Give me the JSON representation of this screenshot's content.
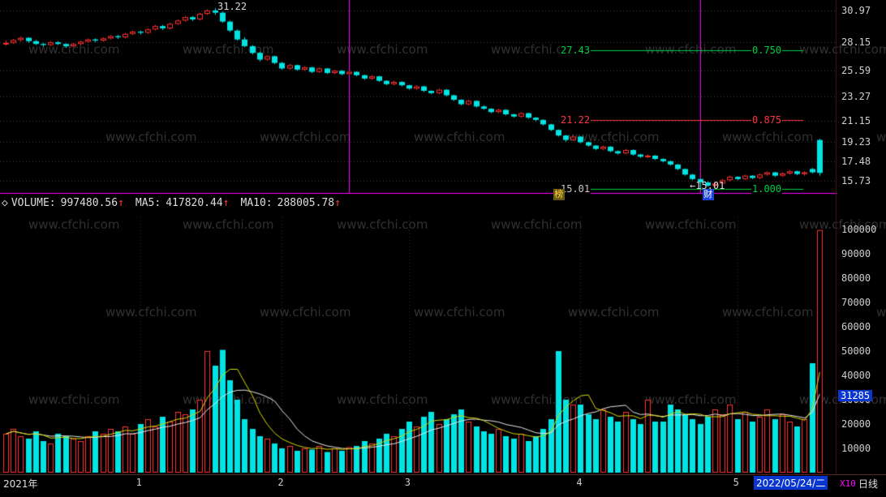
{
  "watermark": {
    "text": "www.cfchi.com"
  },
  "colors": {
    "up": "#ff3232",
    "down": "#00e4e4",
    "ma5": "#d8d800",
    "ma10": "#e8e8e8",
    "grid": "#3c3c3c",
    "month_grid": "#5a1a1a",
    "magenta": "#ff00ff",
    "green": "#00cc44",
    "red": "#ff3344",
    "axis_text": "#cfcfcf",
    "badge_bg": "#0a36d0",
    "x10": "#ff00ff"
  },
  "header": {
    "collapse_icon": "◇",
    "volume_label": "VOLUME:",
    "volume_value": "997480.56",
    "ma5_label": "MA5:",
    "ma5_value": "417820.44",
    "ma10_label": "MA10:",
    "ma10_value": "288005.78",
    "up_arrow": "↑"
  },
  "annotations": {
    "peak": {
      "text": "31.22",
      "idx": 28,
      "value": 31.22
    },
    "low": {
      "arrow": "←",
      "text": "15.01",
      "idx": 93,
      "value": 15.01
    },
    "vlines": [
      46,
      93
    ],
    "fib": [
      {
        "price_text": "27.43",
        "price": 27.43,
        "ratio": "0.750",
        "color": "#00cc44"
      },
      {
        "price_text": "21.22",
        "price": 21.22,
        "ratio": "0.875",
        "color": "#ff3344"
      },
      {
        "price_text": "15.01",
        "price": 15.01,
        "ratio": "1.000",
        "color": "#00cc44",
        "price_color": "#c8c8c8"
      }
    ],
    "tags": [
      {
        "text": "榜",
        "idx": 74,
        "bg": "#6b5b10",
        "fg": "#ffd24a"
      },
      {
        "text": "财",
        "idx": 94,
        "bg": "#1b46d8",
        "fg": "#ffffff"
      }
    ]
  },
  "chart_data": {
    "type": "candlestick+volume",
    "x_axis": {
      "year_label": "2021年",
      "months": [
        {
          "label": "1",
          "idx": 18
        },
        {
          "label": "2",
          "idx": 37
        },
        {
          "label": "3",
          "idx": 54
        },
        {
          "label": "4",
          "idx": 77
        },
        {
          "label": "5",
          "idx": 98
        }
      ],
      "selected_date": "2022/05/24/二",
      "period": "日线"
    },
    "price": {
      "ticks": [
        {
          "text": "30.97",
          "value": 30.97
        },
        {
          "text": "28.15",
          "value": 28.15
        },
        {
          "text": "25.59",
          "value": 25.59
        },
        {
          "text": "23.27",
          "value": 23.27
        },
        {
          "text": "21.15",
          "value": 21.15
        },
        {
          "text": "19.23",
          "value": 19.23
        },
        {
          "text": "17.48",
          "value": 17.48
        },
        {
          "text": "15.73",
          "value": 15.73
        }
      ],
      "candles": [
        [
          28.0,
          28.3,
          27.85,
          28.1
        ],
        [
          28.1,
          28.45,
          28.0,
          28.35
        ],
        [
          28.35,
          28.65,
          28.2,
          28.55
        ],
        [
          28.55,
          28.6,
          28.1,
          28.25
        ],
        [
          28.25,
          28.35,
          27.9,
          28.0
        ],
        [
          28.0,
          28.1,
          27.75,
          27.9
        ],
        [
          27.9,
          28.25,
          27.8,
          28.15
        ],
        [
          28.15,
          28.25,
          27.9,
          28.0
        ],
        [
          28.0,
          28.05,
          27.65,
          27.8
        ],
        [
          27.8,
          28.1,
          27.7,
          28.0
        ],
        [
          28.0,
          28.3,
          27.9,
          28.2
        ],
        [
          28.2,
          28.5,
          28.1,
          28.4
        ],
        [
          28.4,
          28.5,
          28.15,
          28.3
        ],
        [
          28.3,
          28.6,
          28.2,
          28.5
        ],
        [
          28.5,
          28.8,
          28.4,
          28.7
        ],
        [
          28.7,
          28.8,
          28.45,
          28.6
        ],
        [
          28.6,
          29.0,
          28.5,
          28.9
        ],
        [
          28.9,
          29.2,
          28.8,
          29.1
        ],
        [
          29.1,
          29.2,
          28.85,
          29.0
        ],
        [
          29.0,
          29.4,
          28.9,
          29.3
        ],
        [
          29.3,
          29.7,
          29.2,
          29.6
        ],
        [
          29.6,
          29.7,
          29.25,
          29.4
        ],
        [
          29.4,
          29.9,
          29.3,
          29.8
        ],
        [
          29.8,
          30.2,
          29.7,
          30.1
        ],
        [
          30.1,
          30.5,
          30.0,
          30.4
        ],
        [
          30.4,
          30.5,
          30.05,
          30.2
        ],
        [
          30.2,
          30.8,
          30.1,
          30.7
        ],
        [
          30.7,
          31.1,
          30.6,
          31.0
        ],
        [
          31.0,
          31.22,
          30.6,
          30.8
        ],
        [
          30.8,
          30.9,
          29.9,
          30.0
        ],
        [
          30.0,
          30.1,
          29.05,
          29.2
        ],
        [
          29.2,
          29.3,
          28.3,
          28.4
        ],
        [
          28.4,
          28.6,
          27.7,
          27.8
        ],
        [
          27.8,
          27.9,
          27.05,
          27.2
        ],
        [
          27.2,
          27.3,
          26.45,
          26.6
        ],
        [
          26.6,
          27.0,
          26.5,
          26.9
        ],
        [
          26.9,
          26.95,
          26.2,
          26.3
        ],
        [
          26.3,
          26.4,
          25.7,
          25.8
        ],
        [
          25.8,
          26.2,
          25.7,
          26.1
        ],
        [
          26.1,
          26.15,
          25.6,
          25.7
        ],
        [
          25.7,
          26.0,
          25.6,
          25.9
        ],
        [
          25.9,
          25.95,
          25.4,
          25.5
        ],
        [
          25.5,
          25.9,
          25.4,
          25.8
        ],
        [
          25.8,
          25.85,
          25.3,
          25.4
        ],
        [
          25.4,
          25.7,
          25.3,
          25.6
        ],
        [
          25.6,
          25.65,
          25.2,
          25.3
        ],
        [
          25.3,
          25.6,
          25.2,
          25.5
        ],
        [
          25.5,
          25.55,
          25.1,
          25.2
        ],
        [
          25.2,
          25.25,
          24.8,
          24.9
        ],
        [
          24.9,
          25.2,
          24.8,
          25.1
        ],
        [
          25.1,
          25.15,
          24.6,
          24.7
        ],
        [
          24.7,
          24.75,
          24.3,
          24.4
        ],
        [
          24.4,
          24.7,
          24.3,
          24.6
        ],
        [
          24.6,
          24.65,
          24.2,
          24.3
        ],
        [
          24.3,
          24.35,
          23.9,
          24.0
        ],
        [
          24.0,
          24.3,
          23.9,
          24.2
        ],
        [
          24.2,
          24.25,
          23.7,
          23.8
        ],
        [
          23.8,
          23.85,
          23.5,
          23.6
        ],
        [
          23.6,
          24.0,
          23.5,
          23.9
        ],
        [
          23.9,
          23.95,
          23.3,
          23.4
        ],
        [
          23.4,
          23.45,
          22.9,
          23.0
        ],
        [
          23.0,
          23.05,
          22.5,
          22.6
        ],
        [
          22.6,
          23.0,
          22.5,
          22.9
        ],
        [
          22.9,
          22.95,
          22.3,
          22.4
        ],
        [
          22.4,
          22.5,
          22.1,
          22.2
        ],
        [
          22.2,
          22.25,
          21.8,
          21.9
        ],
        [
          21.9,
          22.2,
          21.8,
          22.1
        ],
        [
          22.1,
          22.15,
          21.6,
          21.7
        ],
        [
          21.7,
          21.75,
          21.4,
          21.5
        ],
        [
          21.5,
          21.9,
          21.4,
          21.8
        ],
        [
          21.8,
          21.85,
          21.3,
          21.4
        ],
        [
          21.4,
          21.45,
          21.1,
          21.2
        ],
        [
          21.2,
          21.25,
          20.7,
          20.8
        ],
        [
          20.8,
          20.85,
          20.2,
          20.3
        ],
        [
          20.3,
          20.35,
          19.7,
          19.8
        ],
        [
          19.8,
          19.85,
          19.25,
          19.4
        ],
        [
          19.4,
          19.8,
          19.3,
          19.7
        ],
        [
          19.7,
          19.75,
          19.1,
          19.2
        ],
        [
          19.2,
          19.25,
          18.8,
          18.9
        ],
        [
          18.9,
          18.95,
          18.5,
          18.6
        ],
        [
          18.6,
          18.9,
          18.5,
          18.8
        ],
        [
          18.8,
          18.85,
          18.3,
          18.4
        ],
        [
          18.4,
          18.45,
          18.1,
          18.2
        ],
        [
          18.2,
          18.6,
          18.1,
          18.5
        ],
        [
          18.5,
          18.55,
          18.0,
          18.1
        ],
        [
          18.1,
          18.15,
          17.8,
          17.9
        ],
        [
          17.9,
          18.1,
          17.8,
          18.0
        ],
        [
          18.0,
          18.05,
          17.6,
          17.7
        ],
        [
          17.7,
          17.75,
          17.4,
          17.5
        ],
        [
          17.5,
          17.55,
          17.1,
          17.2
        ],
        [
          17.2,
          17.25,
          16.7,
          16.8
        ],
        [
          16.8,
          16.85,
          16.2,
          16.3
        ],
        [
          16.3,
          16.35,
          15.8,
          15.9
        ],
        [
          15.9,
          15.95,
          15.01,
          15.6
        ],
        [
          15.6,
          15.7,
          15.2,
          15.3
        ],
        [
          15.3,
          15.6,
          15.15,
          15.5
        ],
        [
          15.5,
          15.9,
          15.4,
          15.8
        ],
        [
          15.8,
          16.2,
          15.7,
          16.1
        ],
        [
          16.1,
          16.15,
          15.8,
          15.9
        ],
        [
          15.9,
          16.3,
          15.8,
          16.2
        ],
        [
          16.2,
          16.25,
          15.9,
          16.0
        ],
        [
          16.0,
          16.4,
          15.9,
          16.3
        ],
        [
          16.3,
          16.6,
          16.2,
          16.5
        ],
        [
          16.5,
          16.55,
          16.1,
          16.2
        ],
        [
          16.2,
          16.5,
          16.1,
          16.4
        ],
        [
          16.4,
          16.7,
          16.3,
          16.6
        ],
        [
          16.6,
          16.65,
          16.25,
          16.35
        ],
        [
          16.35,
          16.6,
          16.2,
          16.5
        ],
        [
          16.8,
          16.9,
          16.4,
          16.5
        ],
        [
          19.4,
          19.5,
          16.2,
          16.45
        ]
      ]
    },
    "volume": {
      "unit": "X10",
      "ticks": [
        {
          "text": "100000",
          "value": 100000
        },
        {
          "text": "90000",
          "value": 90000
        },
        {
          "text": "80000",
          "value": 80000
        },
        {
          "text": "70000",
          "value": 70000
        },
        {
          "text": "60000",
          "value": 60000
        },
        {
          "text": "50000",
          "value": 50000
        },
        {
          "text": "40000",
          "value": 40000
        },
        {
          "text": "30000",
          "value": 30000
        },
        {
          "text": "20000",
          "value": 20000
        },
        {
          "text": "10000",
          "value": 10000
        }
      ],
      "values": [
        16000,
        18000,
        15000,
        14000,
        17000,
        13000,
        12000,
        16000,
        15000,
        14000,
        13000,
        15000,
        17000,
        16000,
        18000,
        17000,
        19000,
        16000,
        20000,
        22000,
        19000,
        23000,
        21000,
        25000,
        24000,
        26000,
        30000,
        50000,
        44000,
        50500,
        38000,
        30000,
        22000,
        18000,
        15000,
        14000,
        12000,
        10000,
        11000,
        9000,
        10000,
        9500,
        11000,
        8500,
        10000,
        9000,
        10500,
        11000,
        13000,
        12000,
        14000,
        16000,
        15000,
        18000,
        21000,
        19000,
        23000,
        25000,
        20000,
        22000,
        24000,
        26000,
        21000,
        19000,
        17000,
        16000,
        18000,
        15000,
        14000,
        16000,
        13000,
        15000,
        18000,
        22000,
        50000,
        30000,
        28000,
        28000,
        24000,
        22000,
        26000,
        23000,
        21000,
        25000,
        22000,
        20000,
        30000,
        21000,
        21000,
        28000,
        26000,
        24000,
        22000,
        20000,
        23000,
        26000,
        24000,
        28000,
        22000,
        25000,
        21000,
        23000,
        26000,
        22000,
        24000,
        21000,
        19000,
        22000,
        45000,
        99748
      ],
      "up_override": [
        109
      ],
      "current": {
        "volume": "997480.56",
        "ma5": "417820.44",
        "ma10": "288005.78",
        "ma10_badge": "31285"
      }
    }
  }
}
